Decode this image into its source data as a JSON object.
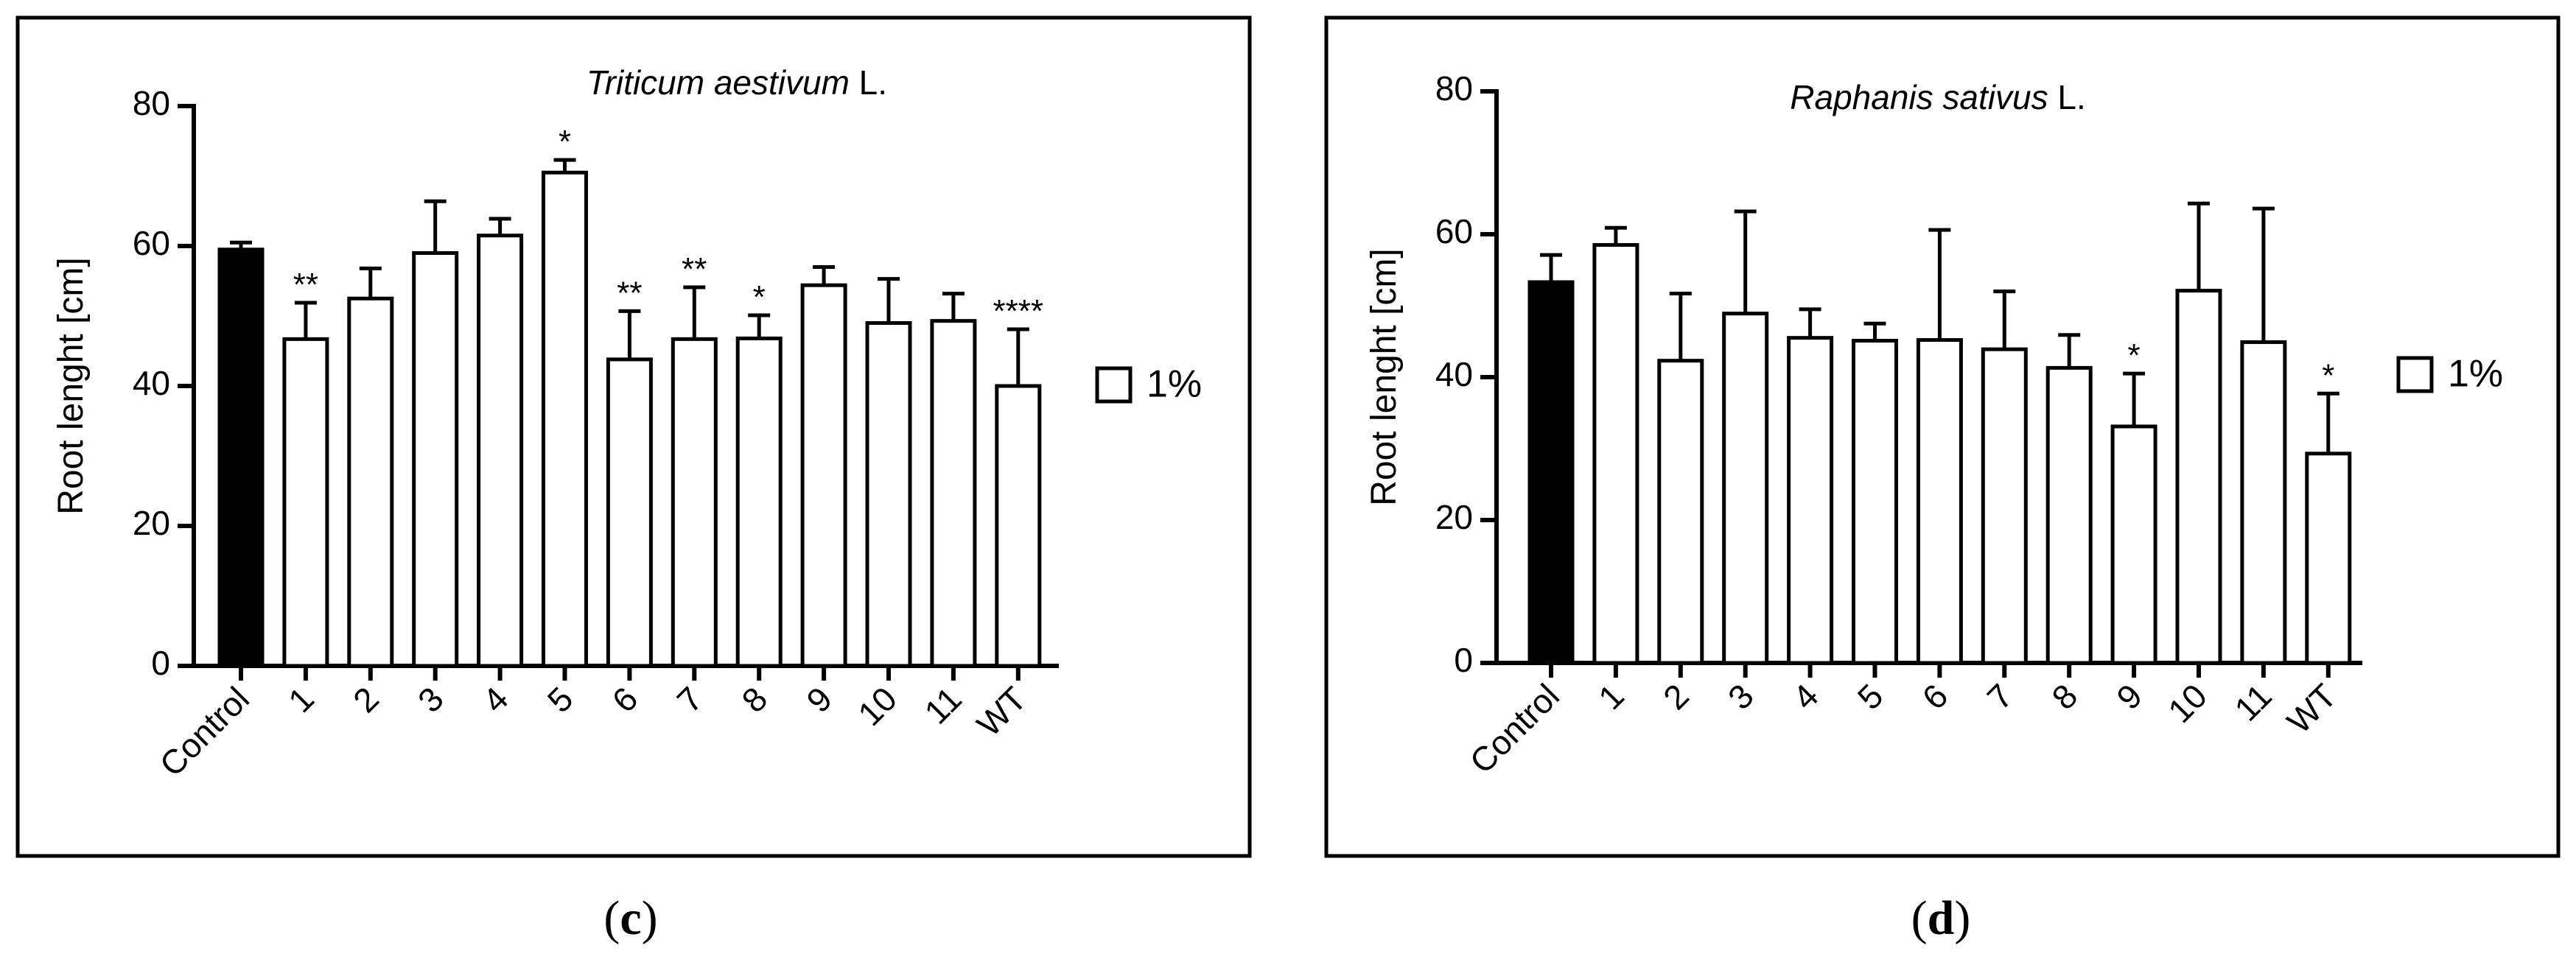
{
  "chart_data": [
    {
      "type": "bar",
      "panel_label": {
        "open": "(",
        "letter": "c",
        "close": ")"
      },
      "title": {
        "italic": "Triticum aestivum",
        "suffix": " L."
      },
      "xlabel": "",
      "ylabel": "Root lenght [cm]",
      "ylim": [
        0,
        80
      ],
      "yticks": [
        "0",
        "20",
        "40",
        "60",
        "80"
      ],
      "categories": [
        "Control",
        "1",
        "2",
        "3",
        "4",
        "5",
        "6",
        "7",
        "8",
        "9",
        "10",
        "11",
        "WT"
      ],
      "values": [
        59.5,
        46.7,
        52.5,
        59.0,
        61.5,
        70.5,
        43.8,
        46.7,
        46.8,
        54.4,
        49.0,
        49.3,
        40.0
      ],
      "errors": [
        1.0,
        5.2,
        4.3,
        7.4,
        2.4,
        1.8,
        6.9,
        7.4,
        3.3,
        2.6,
        6.3,
        3.9,
        8.1
      ],
      "significance": [
        "",
        "**",
        "",
        "",
        "",
        "*",
        "**",
        "**",
        "*",
        "",
        "",
        "",
        "****"
      ],
      "bar_styles": [
        "filled",
        "open",
        "open",
        "open",
        "open",
        "open",
        "open",
        "open",
        "open",
        "open",
        "open",
        "open",
        "open"
      ],
      "legend": [
        {
          "label": "1%",
          "style": "open"
        }
      ],
      "legend_position": "right"
    },
    {
      "type": "bar",
      "panel_label": {
        "open": "(",
        "letter": "d",
        "close": ")"
      },
      "title": {
        "italic": "Raphanis sativus",
        "suffix": " L."
      },
      "xlabel": "",
      "ylabel": "Root lenght [cm]",
      "ylim": [
        0,
        80
      ],
      "yticks": [
        "0",
        "20",
        "40",
        "60",
        "80"
      ],
      "categories": [
        "Control",
        "1",
        "2",
        "3",
        "4",
        "5",
        "6",
        "7",
        "8",
        "9",
        "10",
        "11",
        "WT"
      ],
      "values": [
        53.3,
        58.5,
        42.3,
        48.9,
        45.5,
        45.1,
        45.2,
        43.9,
        41.3,
        33.1,
        52.1,
        44.9,
        29.3
      ],
      "errors": [
        3.8,
        2.4,
        9.4,
        14.3,
        4.0,
        2.4,
        15.4,
        8.1,
        4.6,
        7.4,
        12.2,
        18.7,
        8.4
      ],
      "significance": [
        "",
        "",
        "",
        "",
        "",
        "",
        "",
        "",
        "",
        "*",
        "",
        "",
        "*"
      ],
      "bar_styles": [
        "filled",
        "open",
        "open",
        "open",
        "open",
        "open",
        "open",
        "open",
        "open",
        "open",
        "open",
        "open",
        "open"
      ],
      "legend": [
        {
          "label": "1%",
          "style": "open"
        }
      ],
      "legend_position": "right"
    }
  ]
}
